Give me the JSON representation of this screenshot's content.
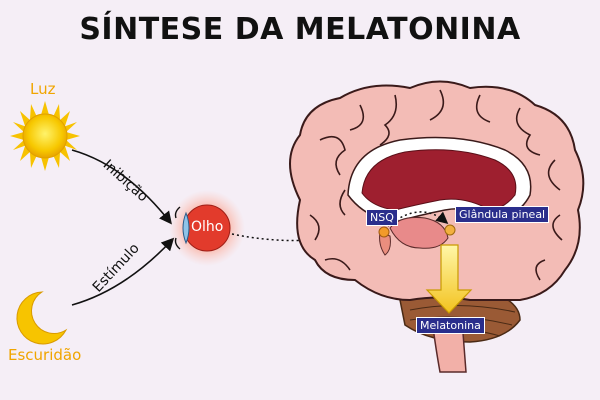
{
  "title": "SÍNTESE DA MELATONINA",
  "labels": {
    "sun": "Luz",
    "moon": "Escuridão",
    "inhibition": "Inibição",
    "stimulus": "Estímulo",
    "eye": "Olho",
    "nsq": "NSQ",
    "pineal": "Glândula pineal",
    "melatonin": "Melatonina"
  },
  "colors": {
    "background": "#f5eef6",
    "label_box": "#2a2e8c",
    "sun": "#f5c400",
    "eye": "#e03a2a",
    "brain": "#f2b8b3",
    "arrow": "#f0c830"
  }
}
